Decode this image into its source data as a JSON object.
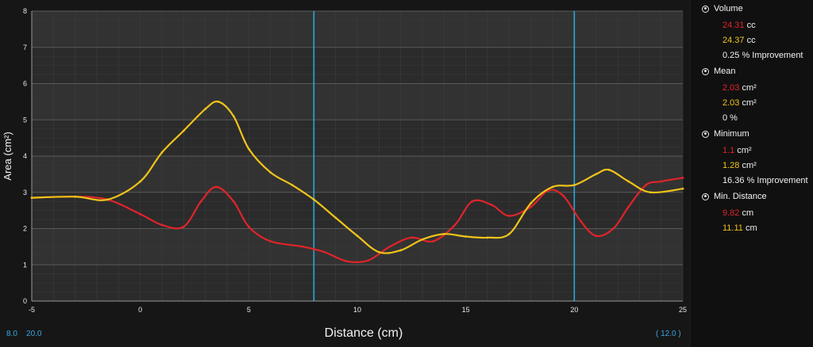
{
  "chart_data": {
    "type": "line",
    "xlabel": "Distance (cm)",
    "ylabel": "Area (cm²)",
    "xlim": [
      -5,
      25
    ],
    "ylim": [
      0,
      8
    ],
    "x_ticks": [
      "-5",
      "0",
      "5",
      "10",
      "15",
      "20",
      "25"
    ],
    "y_ticks": [
      "0",
      "1",
      "2",
      "3",
      "4",
      "5",
      "6",
      "7",
      "8"
    ],
    "markers": [
      8,
      20
    ],
    "series": [
      {
        "color": "#e0242a",
        "x": [
          -5,
          -3,
          -1.5,
          0,
          1,
          2,
          2.8,
          3.5,
          4.3,
          5,
          6,
          7.5,
          8.5,
          9.5,
          10.5,
          11.5,
          12.5,
          13.5,
          14.5,
          15.3,
          16.2,
          17,
          18,
          18.8,
          19.5,
          20.3,
          21,
          21.8,
          22.5,
          23.3,
          24,
          25
        ],
        "y": [
          2.85,
          2.88,
          2.8,
          2.4,
          2.1,
          2.05,
          2.75,
          3.15,
          2.75,
          2.05,
          1.65,
          1.5,
          1.35,
          1.1,
          1.12,
          1.5,
          1.75,
          1.65,
          2.1,
          2.75,
          2.65,
          2.35,
          2.6,
          3.05,
          2.9,
          2.2,
          1.8,
          2.0,
          2.6,
          3.2,
          3.3,
          3.4
        ]
      },
      {
        "color": "#f0c419",
        "x": [
          -5,
          -3,
          -1.5,
          0,
          1,
          2,
          3,
          3.6,
          4.3,
          5,
          6,
          7,
          8,
          9,
          10,
          11,
          12,
          13,
          14,
          15,
          16,
          17,
          18,
          19,
          20,
          21,
          21.6,
          22.5,
          23.5,
          25
        ],
        "y": [
          2.85,
          2.88,
          2.8,
          3.3,
          4.1,
          4.7,
          5.3,
          5.5,
          5.1,
          4.2,
          3.55,
          3.2,
          2.8,
          2.3,
          1.8,
          1.35,
          1.4,
          1.7,
          1.85,
          1.78,
          1.75,
          1.85,
          2.7,
          3.15,
          3.2,
          3.5,
          3.62,
          3.3,
          3.0,
          3.1
        ]
      }
    ]
  },
  "side_panel": {
    "volume": {
      "title": "Volume",
      "red_val": "24.31",
      "red_unit": "cc",
      "yellow_val": "24.37",
      "yellow_unit": "cc",
      "note": "0.25 % Improvement"
    },
    "mean": {
      "title": "Mean",
      "red_val": "2.03",
      "red_unit": "cm²",
      "yellow_val": "2.03",
      "yellow_unit": "cm²",
      "note": "0 %"
    },
    "minimum": {
      "title": "Minimum",
      "red_val": "1.1",
      "red_unit": "cm²",
      "yellow_val": "1.28",
      "yellow_unit": "cm²",
      "note": "16.36 % Improvement"
    },
    "min_distance": {
      "title": "Min. Distance",
      "red_val": "9.82",
      "red_unit": "cm",
      "yellow_val": "11.11",
      "yellow_unit": "cm"
    }
  },
  "footer": {
    "left_a": "8.0",
    "left_b": "20.0",
    "right": "( 12.0 )"
  }
}
